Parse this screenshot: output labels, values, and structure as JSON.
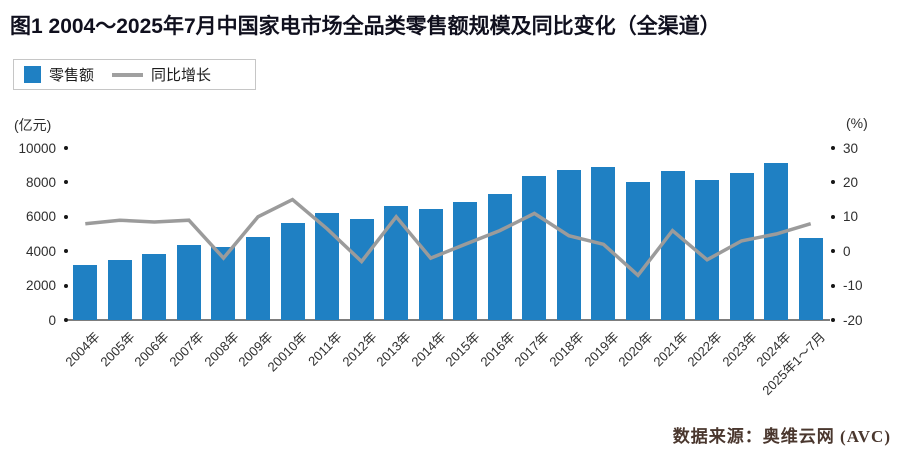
{
  "figure": {
    "title": "图1  2004～2025年7月中国家电市场全品类零售额规模及同比变化（全渠道）",
    "source": "数据来源：奥维云网 (AVC)"
  },
  "legend": {
    "bar_label": "零售额",
    "line_label": "同比增长"
  },
  "axes": {
    "left_unit": "(亿元)",
    "right_unit": "(%)"
  },
  "colors": {
    "bar": "#1f80c3",
    "line": "#9b9b9b",
    "legend_line": "#a0a0a0"
  },
  "chart_data": {
    "type": "bar+line",
    "title": "图1  2004～2025年7月中国家电市场全品类零售额规模及同比变化（全渠道）",
    "categories": [
      "2004年",
      "2005年",
      "2006年",
      "2007年",
      "2008年",
      "2009年",
      "20010年",
      "2011年",
      "2012年",
      "2013年",
      "2014年",
      "2015年",
      "2016年",
      "2017年",
      "2018年",
      "2019年",
      "2020年",
      "2021年",
      "2022年",
      "2023年",
      "2024年",
      "2025年1～7月"
    ],
    "series": [
      {
        "name": "零售额",
        "type": "bar",
        "axis": "left",
        "unit": "亿元",
        "values": [
          3200,
          3500,
          3850,
          4350,
          4250,
          4850,
          5650,
          6200,
          5900,
          6600,
          6450,
          6850,
          7300,
          8400,
          8700,
          8900,
          8000,
          8650,
          8150,
          8550,
          9100,
          4750
        ]
      },
      {
        "name": "同比增长",
        "type": "line",
        "axis": "right",
        "unit": "%",
        "values": [
          8,
          9,
          8.5,
          9,
          -2,
          10,
          15,
          6.5,
          -3,
          10,
          -2,
          2,
          6,
          11,
          4.5,
          2,
          -7,
          6,
          -2.5,
          3,
          5,
          8
        ]
      }
    ],
    "left_axis": {
      "unit": "(亿元)",
      "ticks": [
        0,
        2000,
        4000,
        6000,
        8000,
        10000
      ],
      "ylim": [
        0,
        10000
      ]
    },
    "right_axis": {
      "unit": "(%)",
      "ticks": [
        -20,
        -10,
        0,
        10,
        20,
        30
      ],
      "ylim": [
        -20,
        30
      ]
    },
    "grid": false,
    "legend_position": "top-left",
    "source": "数据来源：奥维云网 (AVC)"
  }
}
